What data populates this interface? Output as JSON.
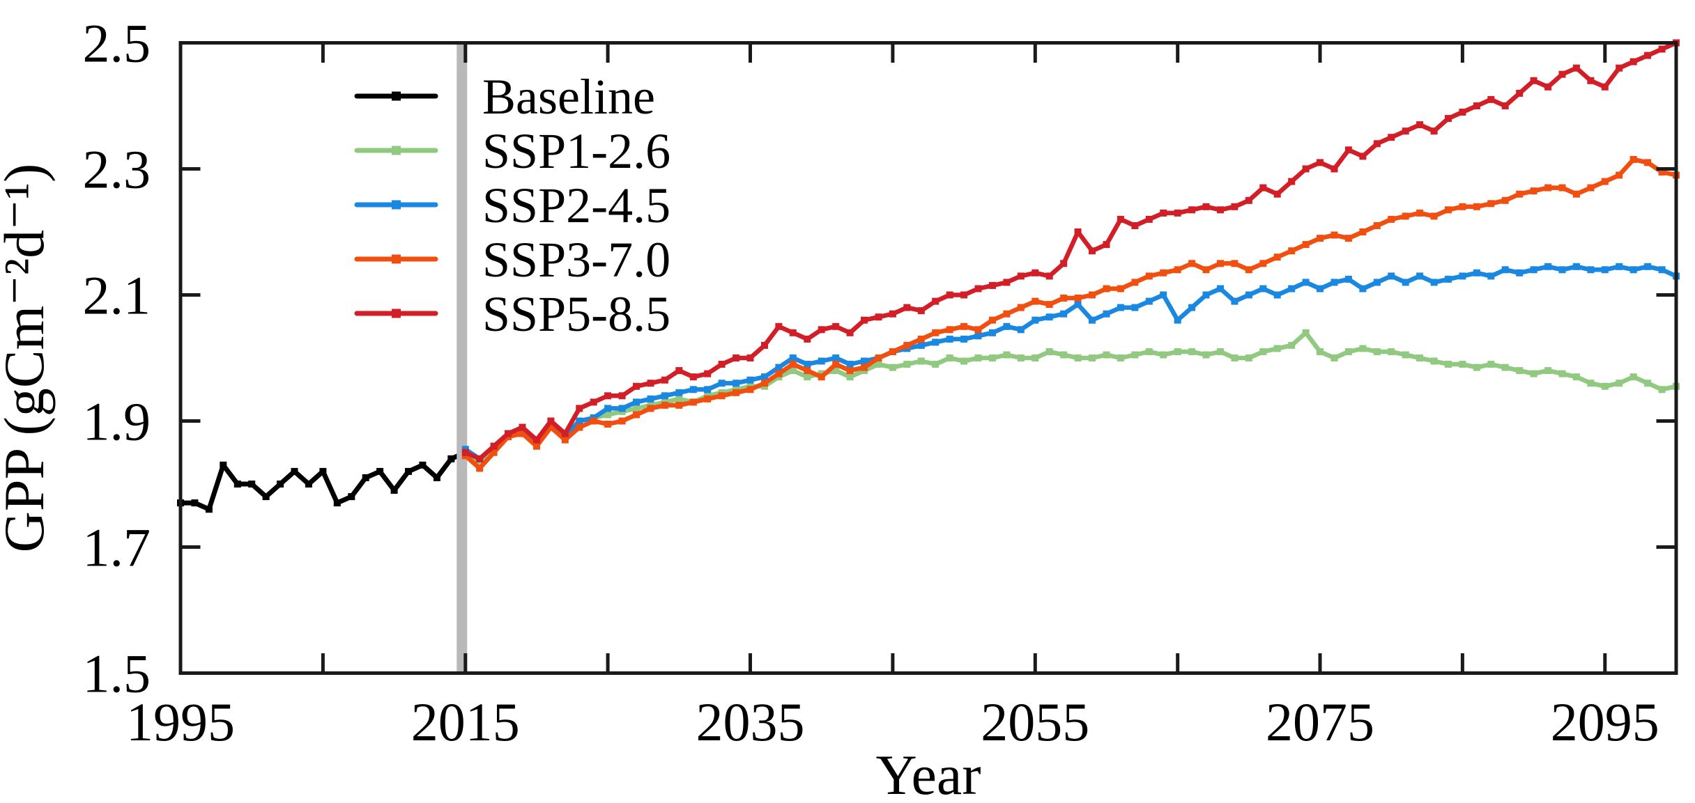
{
  "chart_data": {
    "type": "line",
    "title": "",
    "xlabel": "Year",
    "ylabel": "GPP (gCm⁻²d⁻¹)",
    "x_range": [
      1995,
      2100
    ],
    "ylim": [
      1.5,
      2.5
    ],
    "x_major_ticks": [
      1995,
      2015,
      2035,
      2055,
      2075,
      2095
    ],
    "x_minor_tick_years": [
      2005,
      2015,
      2025,
      2035,
      2045,
      2055,
      2065,
      2075,
      2085,
      2095
    ],
    "y_ticks": [
      1.5,
      1.7,
      1.9,
      2.1,
      2.3,
      2.5
    ],
    "y_tick_inner": [
      1.7,
      1.9,
      2.1,
      2.3
    ],
    "grid": false,
    "legend_position": "top-left-inside",
    "highlight_year": 2015,
    "highlight_band_color": "#b9b9b9",
    "axis_color": "#1a1a1a",
    "background_color": "#ffffff",
    "series": [
      {
        "name": "Baseline",
        "color": "#000000",
        "start_year": 1995,
        "values": [
          1.77,
          1.77,
          1.76,
          1.83,
          1.8,
          1.8,
          1.78,
          1.8,
          1.82,
          1.8,
          1.82,
          1.77,
          1.78,
          1.81,
          1.82,
          1.79,
          1.82,
          1.83,
          1.81,
          1.84,
          1.85
        ]
      },
      {
        "name": "SSP1-2.6",
        "color": "#90c97f",
        "start_year": 2015,
        "values": [
          1.85,
          1.835,
          1.86,
          1.88,
          1.885,
          1.87,
          1.895,
          1.88,
          1.9,
          1.905,
          1.91,
          1.915,
          1.92,
          1.925,
          1.93,
          1.935,
          1.93,
          1.94,
          1.945,
          1.95,
          1.955,
          1.955,
          1.97,
          1.98,
          1.97,
          1.975,
          1.98,
          1.97,
          1.98,
          1.99,
          1.985,
          1.99,
          1.995,
          1.99,
          2.0,
          1.995,
          2.0,
          2.0,
          2.005,
          2.0,
          2.0,
          2.01,
          2.005,
          2.0,
          2.0,
          2.005,
          2.0,
          2.005,
          2.01,
          2.005,
          2.01,
          2.01,
          2.005,
          2.01,
          2.0,
          2.0,
          2.01,
          2.015,
          2.02,
          2.04,
          2.01,
          2.0,
          2.01,
          2.015,
          2.01,
          2.01,
          2.005,
          2.0,
          1.995,
          1.99,
          1.99,
          1.985,
          1.99,
          1.985,
          1.98,
          1.975,
          1.98,
          1.975,
          1.97,
          1.96,
          1.955,
          1.96,
          1.97,
          1.96,
          1.95,
          1.955
        ]
      },
      {
        "name": "SSP2-4.5",
        "color": "#1a87e0",
        "start_year": 2015,
        "values": [
          1.855,
          1.84,
          1.86,
          1.88,
          1.89,
          1.865,
          1.89,
          1.875,
          1.9,
          1.905,
          1.92,
          1.92,
          1.93,
          1.935,
          1.94,
          1.945,
          1.95,
          1.95,
          1.96,
          1.96,
          1.965,
          1.97,
          1.985,
          2.0,
          1.99,
          1.995,
          2.0,
          1.99,
          1.995,
          2.0,
          2.01,
          2.015,
          2.02,
          2.025,
          2.03,
          2.03,
          2.035,
          2.04,
          2.05,
          2.045,
          2.06,
          2.065,
          2.07,
          2.085,
          2.06,
          2.07,
          2.08,
          2.08,
          2.09,
          2.1,
          2.06,
          2.08,
          2.1,
          2.11,
          2.09,
          2.1,
          2.11,
          2.1,
          2.11,
          2.12,
          2.11,
          2.12,
          2.125,
          2.11,
          2.12,
          2.13,
          2.12,
          2.13,
          2.12,
          2.125,
          2.13,
          2.135,
          2.13,
          2.14,
          2.135,
          2.14,
          2.145,
          2.14,
          2.145,
          2.14,
          2.14,
          2.145,
          2.14,
          2.145,
          2.14,
          2.13
        ]
      },
      {
        "name": "SSP3-7.0",
        "color": "#f14f10",
        "start_year": 2015,
        "values": [
          1.845,
          1.825,
          1.85,
          1.875,
          1.88,
          1.86,
          1.89,
          1.87,
          1.89,
          1.9,
          1.895,
          1.9,
          1.91,
          1.92,
          1.925,
          1.925,
          1.93,
          1.935,
          1.94,
          1.945,
          1.95,
          1.96,
          1.975,
          1.99,
          1.98,
          1.97,
          1.99,
          1.98,
          1.985,
          2.0,
          2.01,
          2.02,
          2.03,
          2.04,
          2.045,
          2.05,
          2.045,
          2.06,
          2.07,
          2.08,
          2.09,
          2.085,
          2.095,
          2.095,
          2.1,
          2.11,
          2.11,
          2.12,
          2.13,
          2.135,
          2.14,
          2.15,
          2.14,
          2.15,
          2.15,
          2.14,
          2.15,
          2.16,
          2.17,
          2.18,
          2.19,
          2.195,
          2.19,
          2.2,
          2.21,
          2.22,
          2.225,
          2.23,
          2.225,
          2.235,
          2.24,
          2.24,
          2.245,
          2.25,
          2.26,
          2.265,
          2.27,
          2.27,
          2.26,
          2.27,
          2.28,
          2.29,
          2.315,
          2.31,
          2.295,
          2.29
        ]
      },
      {
        "name": "SSP5-8.5",
        "color": "#d21e26",
        "start_year": 2015,
        "values": [
          1.85,
          1.84,
          1.86,
          1.88,
          1.89,
          1.87,
          1.9,
          1.88,
          1.92,
          1.93,
          1.94,
          1.94,
          1.955,
          1.96,
          1.965,
          1.98,
          1.97,
          1.975,
          1.99,
          2.0,
          2.0,
          2.02,
          2.05,
          2.04,
          2.03,
          2.045,
          2.05,
          2.04,
          2.06,
          2.065,
          2.07,
          2.08,
          2.075,
          2.09,
          2.1,
          2.1,
          2.11,
          2.115,
          2.12,
          2.13,
          2.135,
          2.13,
          2.15,
          2.2,
          2.17,
          2.18,
          2.22,
          2.21,
          2.22,
          2.23,
          2.23,
          2.235,
          2.24,
          2.235,
          2.24,
          2.25,
          2.27,
          2.26,
          2.28,
          2.3,
          2.31,
          2.3,
          2.33,
          2.32,
          2.34,
          2.35,
          2.36,
          2.37,
          2.36,
          2.38,
          2.39,
          2.4,
          2.41,
          2.4,
          2.42,
          2.44,
          2.43,
          2.45,
          2.46,
          2.44,
          2.43,
          2.46,
          2.47,
          2.48,
          2.49,
          2.5
        ]
      }
    ]
  },
  "legend": {
    "items": [
      "Baseline",
      "SSP1-2.6",
      "SSP2-4.5",
      "SSP3-7.0",
      "SSP5-8.5"
    ]
  }
}
